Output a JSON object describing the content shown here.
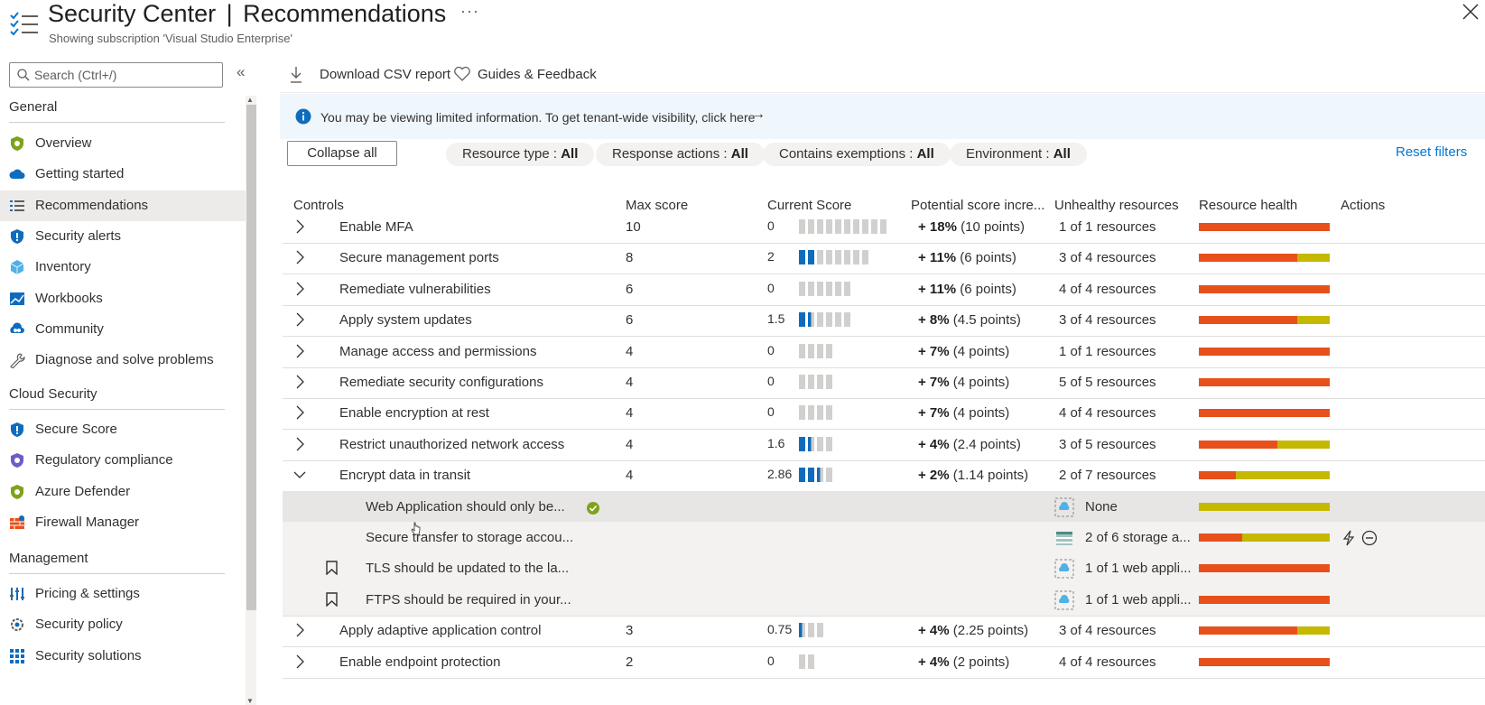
{
  "header": {
    "title_main": "Security Center",
    "title_separator": "|",
    "title_page": "Recommendations",
    "subtitle": "Showing subscription 'Visual Studio Enterprise'",
    "more": "···"
  },
  "sidebar": {
    "search_placeholder": "Search (Ctrl+/)",
    "collapse_glyph": "«",
    "sections": [
      {
        "title": "General",
        "items": [
          {
            "label": "Overview",
            "icon": "shield-green-icon"
          },
          {
            "label": "Getting started",
            "icon": "cloud-icon"
          },
          {
            "label": "Recommendations",
            "icon": "list-icon",
            "active": true
          },
          {
            "label": "Security alerts",
            "icon": "shield-blue-icon"
          },
          {
            "label": "Inventory",
            "icon": "cube-icon"
          },
          {
            "label": "Workbooks",
            "icon": "chart-icon"
          },
          {
            "label": "Community",
            "icon": "community-icon"
          },
          {
            "label": "Diagnose and solve problems",
            "icon": "wrench-icon"
          }
        ]
      },
      {
        "title": "Cloud Security",
        "items": [
          {
            "label": "Secure Score",
            "icon": "shield-blue-icon"
          },
          {
            "label": "Regulatory compliance",
            "icon": "shield-purple-icon"
          },
          {
            "label": "Azure Defender",
            "icon": "shield-green-icon"
          },
          {
            "label": "Firewall Manager",
            "icon": "firewall-icon"
          }
        ]
      },
      {
        "title": "Management",
        "items": [
          {
            "label": "Pricing & settings",
            "icon": "sliders-icon"
          },
          {
            "label": "Security policy",
            "icon": "gear-icon"
          },
          {
            "label": "Security solutions",
            "icon": "grid-icon"
          }
        ]
      }
    ]
  },
  "toolbar": {
    "download_label": "Download CSV report",
    "guides_label": "Guides & Feedback"
  },
  "banner": {
    "text": "You may be viewing limited information. To get tenant-wide visibility, click here",
    "arrow": "→"
  },
  "filters": {
    "collapse_all": "Collapse all",
    "pills": [
      {
        "name": "Resource type",
        "value": "All"
      },
      {
        "name": "Response actions",
        "value": "All"
      },
      {
        "name": "Contains exemptions",
        "value": "All"
      },
      {
        "name": "Environment",
        "value": "All"
      }
    ],
    "separator": " : ",
    "reset": "Reset filters"
  },
  "table": {
    "columns": [
      "Controls",
      "Max score",
      "Current Score",
      "Potential score incre...",
      "Unhealthy resources",
      "Resource health",
      "Actions"
    ],
    "rows": [
      {
        "name": "Enable MFA",
        "max": "10",
        "current": "0",
        "segments": 10,
        "filled": 0,
        "pct": "+ 18%",
        "points": "(10 points)",
        "unhealthy": "1 of 1 resources",
        "health": 1.0
      },
      {
        "name": "Secure management ports",
        "max": "8",
        "current": "2",
        "segments": 8,
        "filled": 2,
        "pct": "+ 11%",
        "points": "(6 points)",
        "unhealthy": "3 of 4 resources",
        "health": 0.75
      },
      {
        "name": "Remediate vulnerabilities",
        "max": "6",
        "current": "0",
        "segments": 6,
        "filled": 0,
        "pct": "+ 11%",
        "points": "(6 points)",
        "unhealthy": "4 of 4 resources",
        "health": 1.0
      },
      {
        "name": "Apply system updates",
        "max": "6",
        "current": "1.5",
        "segments": 6,
        "filled": 1.5,
        "pct": "+ 8%",
        "points": "(4.5 points)",
        "unhealthy": "3 of 4 resources",
        "health": 0.75
      },
      {
        "name": "Manage access and permissions",
        "max": "4",
        "current": "0",
        "segments": 4,
        "filled": 0,
        "pct": "+ 7%",
        "points": "(4 points)",
        "unhealthy": "1 of 1 resources",
        "health": 1.0
      },
      {
        "name": "Remediate security configurations",
        "max": "4",
        "current": "0",
        "segments": 4,
        "filled": 0,
        "pct": "+ 7%",
        "points": "(4 points)",
        "unhealthy": "5 of 5 resources",
        "health": 1.0
      },
      {
        "name": "Enable encryption at rest",
        "max": "4",
        "current": "0",
        "segments": 4,
        "filled": 0,
        "pct": "+ 7%",
        "points": "(4 points)",
        "unhealthy": "4 of 4 resources",
        "health": 1.0
      },
      {
        "name": "Restrict unauthorized network access",
        "max": "4",
        "current": "1.6",
        "segments": 4,
        "filled": 1.6,
        "pct": "+ 4%",
        "points": "(2.4 points)",
        "unhealthy": "3 of 5 resources",
        "health": 0.6
      },
      {
        "name": "Encrypt data in transit",
        "max": "4",
        "current": "2.86",
        "segments": 4,
        "filled": 2.86,
        "pct": "+ 2%",
        "points": "(1.14 points)",
        "unhealthy": "2 of 7 resources",
        "health": 0.2857,
        "expanded": true
      },
      {
        "name": "Web Application should only be...",
        "sub": true,
        "hover": true,
        "check": true,
        "unhealthy": "None",
        "resource_icon": "web-app-icon",
        "health": 0
      },
      {
        "name": "Secure transfer to storage accou...",
        "sub": true,
        "unhealthy": "2 of 6 storage a...",
        "resource_icon": "storage-icon",
        "health": 0.3333,
        "actions": [
          "quick-fix-icon",
          "exempt-icon"
        ]
      },
      {
        "name": "TLS should be updated to the la...",
        "sub": true,
        "bookmark": true,
        "unhealthy": "1 of 1 web appli...",
        "resource_icon": "web-app-icon",
        "health": 1.0
      },
      {
        "name": "FTPS should be required in your...",
        "sub": true,
        "bookmark": true,
        "unhealthy": "1 of 1 web appli...",
        "resource_icon": "web-app-icon",
        "health": 1.0
      },
      {
        "name": "Apply adaptive application control",
        "max": "3",
        "current": "0.75",
        "segments": 3,
        "filled": 0.75,
        "pct": "+ 4%",
        "points": "(2.25 points)",
        "unhealthy": "3 of 4 resources",
        "health": 0.75
      },
      {
        "name": "Enable endpoint protection",
        "max": "2",
        "current": "0",
        "segments": 2,
        "filled": 0,
        "pct": "+ 4%",
        "points": "(2 points)",
        "unhealthy": "4 of 4 resources",
        "health": 1.0
      }
    ]
  },
  "colors": {
    "accent": "#0078d4",
    "unhealthy": "#e8501b",
    "healthy": "#c5b800",
    "score_on": "#0f6cbd",
    "score_off": "#d2d0ce"
  }
}
